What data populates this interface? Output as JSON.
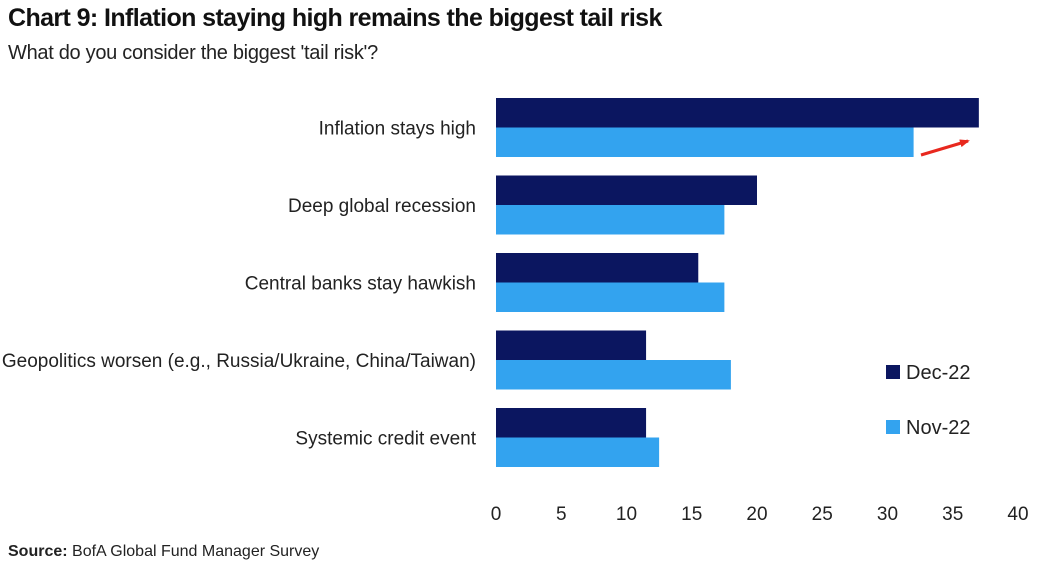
{
  "header": {
    "title": "Chart 9: Inflation staying high remains the biggest tail risk",
    "subtitle": "What do you consider the biggest 'tail risk'?"
  },
  "footer": {
    "source_label": "Source:",
    "source_text": "BofA Global Fund Manager Survey"
  },
  "colors": {
    "dec": "#0b1660",
    "nov": "#33a3ef",
    "arrow": "#e8281e"
  },
  "chart_data": {
    "type": "bar",
    "orientation": "horizontal",
    "categories": [
      "Inflation stays high",
      "Deep global recession",
      "Central banks stay hawkish",
      "Geopolitics worsen (e.g., Russia/Ukraine, China/Taiwan)",
      "Systemic credit event"
    ],
    "series": [
      {
        "name": "Dec-22",
        "values": [
          37,
          20,
          15.5,
          11.5,
          11.5
        ]
      },
      {
        "name": "Nov-22",
        "values": [
          32,
          17.5,
          17.5,
          18,
          12.5
        ]
      }
    ],
    "xlim": [
      0,
      40
    ],
    "xticks": [
      "0",
      "5",
      "10",
      "15",
      "20",
      "25",
      "30",
      "35",
      "40"
    ],
    "grid": false,
    "legend_position": "right",
    "annotation": "red arrow pointing right beside the Inflation stays high bars"
  }
}
